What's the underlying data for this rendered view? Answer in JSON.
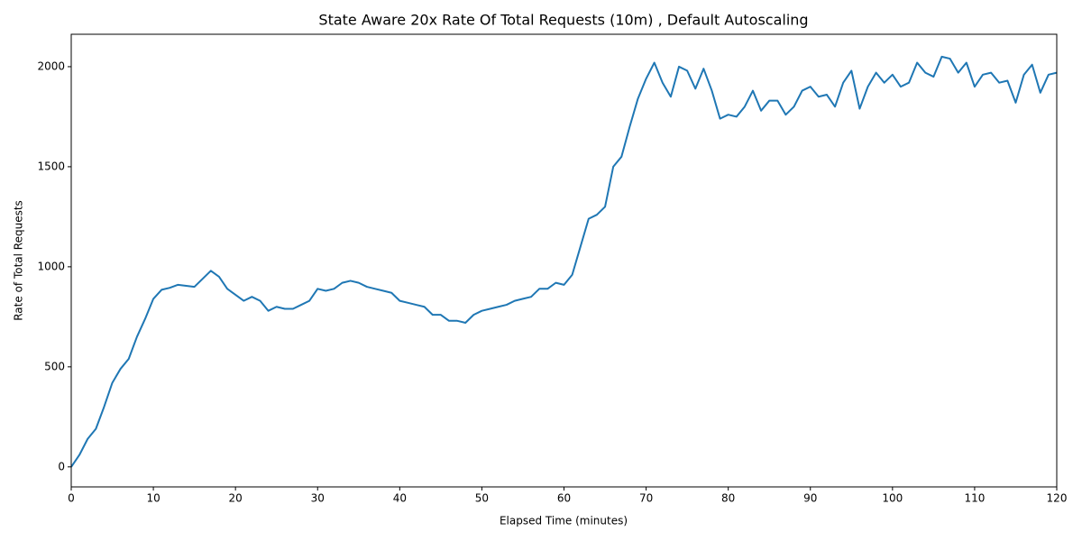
{
  "chart_data": {
    "type": "line",
    "title": "State Aware 20x Rate Of Total Requests (10m) , Default Autoscaling",
    "x_label": "Elapsed Time (minutes)",
    "y_label": "Rate of Total Requests",
    "x": [
      0,
      1,
      2,
      3,
      4,
      5,
      6,
      7,
      8,
      9,
      10,
      11,
      12,
      13,
      14,
      15,
      16,
      17,
      18,
      19,
      20,
      21,
      22,
      23,
      24,
      25,
      26,
      27,
      28,
      29,
      30,
      31,
      32,
      33,
      34,
      35,
      36,
      37,
      38,
      39,
      40,
      41,
      42,
      43,
      44,
      45,
      46,
      47,
      48,
      49,
      50,
      51,
      52,
      53,
      54,
      55,
      56,
      57,
      58,
      59,
      60,
      61,
      62,
      63,
      64,
      65,
      66,
      67,
      68,
      69,
      70,
      71,
      72,
      73,
      74,
      75,
      76,
      77,
      78,
      79,
      80,
      81,
      82,
      83,
      84,
      85,
      86,
      87,
      88,
      89,
      90,
      91,
      92,
      93,
      94,
      95,
      96,
      97,
      98,
      99,
      100,
      101,
      102,
      103,
      104,
      105,
      106,
      107,
      108,
      109,
      110,
      111,
      112,
      113,
      114,
      115,
      116,
      117,
      118,
      119,
      120
    ],
    "series": [
      {
        "name": "Rate of Total Requests",
        "color": "#1f77b4",
        "values": [
          0,
          60,
          140,
          190,
          300,
          420,
          490,
          540,
          650,
          740,
          840,
          885,
          895,
          910,
          905,
          900,
          940,
          980,
          950,
          890,
          860,
          830,
          850,
          830,
          780,
          800,
          790,
          790,
          810,
          830,
          890,
          880,
          890,
          920,
          930,
          920,
          900,
          890,
          880,
          870,
          830,
          820,
          810,
          800,
          760,
          760,
          730,
          730,
          720,
          760,
          780,
          790,
          800,
          810,
          830,
          840,
          850,
          890,
          890,
          920,
          910,
          960,
          1100,
          1240,
          1260,
          1300,
          1500,
          1550,
          1700,
          1840,
          1940,
          2020,
          1920,
          1850,
          2000,
          1980,
          1890,
          1990,
          1880,
          1740,
          1760,
          1750,
          1800,
          1880,
          1780,
          1830,
          1830,
          1760,
          1800,
          1880,
          1900,
          1850,
          1860,
          1800,
          1920,
          1980,
          1790,
          1900,
          1970,
          1920,
          1960,
          1900,
          1920,
          2020,
          1970,
          1950,
          2050,
          2040,
          1970,
          2020,
          1900,
          1960,
          1970,
          1920,
          1930,
          1820,
          1960,
          2010,
          1870,
          1960,
          1970
        ]
      }
    ],
    "xlim": [
      0,
      120
    ],
    "xticks": [
      0,
      10,
      20,
      30,
      40,
      50,
      60,
      70,
      80,
      90,
      100,
      110,
      120
    ],
    "ylim": [
      -100,
      2162
    ],
    "yticks": [
      0,
      500,
      1000,
      1500,
      2000
    ]
  }
}
